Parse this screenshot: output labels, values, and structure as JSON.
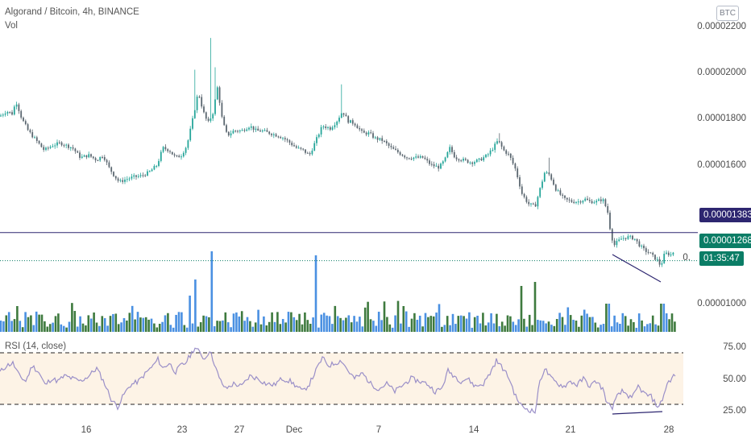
{
  "header": {
    "title": "Algorand / Bitcoin, 4h, BINANCE",
    "volume_label": "Vol",
    "rsi_label": "RSI (14, close)",
    "currency": "BTC"
  },
  "colors": {
    "up": "#26a69a",
    "down": "#5b6770",
    "vol_up": "#3e7a3e",
    "vol_down": "#4a90e2",
    "rsi_line": "#9a8fc8",
    "rsi_band": "#fdf3e6",
    "level_line": "#2d2670",
    "trend_line": "#2d2670",
    "current_price": "#0b7d66"
  },
  "chart_data": [
    {
      "type": "candlestick",
      "title": "Algorand / Bitcoin, 4h, BINANCE",
      "x_tick_labels": [
        "16",
        "23",
        "27",
        "Dec",
        "7",
        "14",
        "21",
        "28"
      ],
      "y_tick_labels": [
        "0.00002200",
        "0.00002000",
        "0.00001800",
        "0.00001600"
      ],
      "ylim": [
        1.28e-05,
        2.22e-05
      ],
      "level_line": 1.383e-05,
      "current_price": 1.268e-05,
      "countdown": "01:35:47",
      "level_label": "0.00001383",
      "current_label": "0.00001268",
      "partial_label": "0.",
      "anchors": [
        [
          0,
          1860
        ],
        [
          8,
          1880
        ],
        [
          15,
          1870
        ],
        [
          20,
          1920
        ],
        [
          27,
          1850
        ],
        [
          35,
          1800
        ],
        [
          45,
          1760
        ],
        [
          55,
          1720
        ],
        [
          65,
          1740
        ],
        [
          75,
          1750
        ],
        [
          82,
          1740
        ],
        [
          90,
          1730
        ],
        [
          100,
          1690
        ],
        [
          110,
          1700
        ],
        [
          120,
          1680
        ],
        [
          128,
          1700
        ],
        [
          135,
          1650
        ],
        [
          142,
          1615
        ],
        [
          148,
          1590
        ],
        [
          155,
          1600
        ],
        [
          165,
          1610
        ],
        [
          175,
          1615
        ],
        [
          185,
          1630
        ],
        [
          195,
          1660
        ],
        [
          202,
          1730
        ],
        [
          210,
          1720
        ],
        [
          218,
          1690
        ],
        [
          225,
          1700
        ],
        [
          232,
          1740
        ],
        [
          240,
          1860
        ],
        [
          246,
          1960
        ],
        [
          252,
          1880
        ],
        [
          258,
          1830
        ],
        [
          264,
          1870
        ],
        [
          270,
          1980
        ],
        [
          276,
          1840
        ],
        [
          282,
          1780
        ],
        [
          290,
          1800
        ],
        [
          300,
          1800
        ],
        [
          310,
          1820
        ],
        [
          318,
          1800
        ],
        [
          325,
          1800
        ],
        [
          335,
          1790
        ],
        [
          345,
          1780
        ],
        [
          352,
          1770
        ],
        [
          360,
          1750
        ],
        [
          368,
          1730
        ],
        [
          376,
          1720
        ],
        [
          384,
          1700
        ],
        [
          392,
          1760
        ],
        [
          400,
          1820
        ],
        [
          410,
          1810
        ],
        [
          418,
          1840
        ],
        [
          425,
          1880
        ],
        [
          432,
          1840
        ],
        [
          440,
          1830
        ],
        [
          450,
          1790
        ],
        [
          458,
          1790
        ],
        [
          465,
          1770
        ],
        [
          475,
          1760
        ],
        [
          485,
          1730
        ],
        [
          495,
          1710
        ],
        [
          505,
          1690
        ],
        [
          515,
          1690
        ],
        [
          525,
          1690
        ],
        [
          535,
          1660
        ],
        [
          545,
          1650
        ],
        [
          552,
          1680
        ],
        [
          558,
          1730
        ],
        [
          565,
          1690
        ],
        [
          575,
          1680
        ],
        [
          585,
          1670
        ],
        [
          595,
          1680
        ],
        [
          605,
          1700
        ],
        [
          612,
          1730
        ],
        [
          618,
          1760
        ],
        [
          625,
          1720
        ],
        [
          632,
          1700
        ],
        [
          640,
          1640
        ],
        [
          648,
          1540
        ],
        [
          656,
          1500
        ],
        [
          664,
          1490
        ],
        [
          670,
          1560
        ],
        [
          676,
          1630
        ],
        [
          682,
          1620
        ],
        [
          690,
          1560
        ],
        [
          700,
          1520
        ],
        [
          710,
          1510
        ],
        [
          718,
          1510
        ],
        [
          726,
          1520
        ],
        [
          732,
          1510
        ],
        [
          740,
          1510
        ],
        [
          748,
          1520
        ],
        [
          754,
          1470
        ],
        [
          758,
          1380
        ],
        [
          762,
          1330
        ],
        [
          766,
          1345
        ],
        [
          772,
          1360
        ],
        [
          780,
          1365
        ],
        [
          787,
          1360
        ],
        [
          794,
          1330
        ],
        [
          800,
          1310
        ],
        [
          806,
          1300
        ],
        [
          812,
          1280
        ],
        [
          816,
          1270
        ],
        [
          820,
          1245
        ],
        [
          824,
          1290
        ],
        [
          828,
          1300
        ],
        [
          832,
          1290
        ],
        [
          836,
          1305
        ]
      ],
      "spikes": [
        [
          262,
          2180
        ],
        [
          242,
          2050
        ],
        [
          268,
          2060
        ],
        [
          424,
          1990
        ],
        [
          620,
          1790
        ],
        [
          682,
          1690
        ]
      ]
    },
    {
      "type": "bar",
      "title": "Vol",
      "spikes": [
        [
          262,
          1.0
        ],
        [
          393,
          0.95
        ],
        [
          242,
          0.65
        ],
        [
          664,
          0.62
        ],
        [
          648,
          0.57
        ],
        [
          236,
          0.45
        ],
        [
          754,
          0.35
        ],
        [
          822,
          0.35
        ],
        [
          20,
          0.32
        ],
        [
          500,
          0.32
        ]
      ]
    },
    {
      "type": "line",
      "title": "RSI (14, close)",
      "y_tick_labels": [
        "75.00",
        "50.00",
        "25.00"
      ],
      "ylim": [
        22,
        78
      ],
      "bands": [
        30,
        70
      ],
      "anchors": [
        [
          0,
          55
        ],
        [
          8,
          60
        ],
        [
          16,
          62
        ],
        [
          24,
          52
        ],
        [
          32,
          48
        ],
        [
          40,
          60
        ],
        [
          48,
          55
        ],
        [
          56,
          45
        ],
        [
          64,
          50
        ],
        [
          72,
          48
        ],
        [
          80,
          52
        ],
        [
          90,
          50
        ],
        [
          100,
          48
        ],
        [
          110,
          52
        ],
        [
          120,
          58
        ],
        [
          130,
          46
        ],
        [
          138,
          34
        ],
        [
          146,
          28
        ],
        [
          154,
          38
        ],
        [
          162,
          45
        ],
        [
          172,
          48
        ],
        [
          182,
          55
        ],
        [
          190,
          60
        ],
        [
          196,
          65
        ],
        [
          202,
          58
        ],
        [
          210,
          62
        ],
        [
          218,
          55
        ],
        [
          224,
          60
        ],
        [
          230,
          62
        ],
        [
          236,
          68
        ],
        [
          242,
          74
        ],
        [
          248,
          70
        ],
        [
          254,
          65
        ],
        [
          260,
          72
        ],
        [
          266,
          62
        ],
        [
          272,
          50
        ],
        [
          280,
          42
        ],
        [
          290,
          46
        ],
        [
          300,
          44
        ],
        [
          310,
          52
        ],
        [
          320,
          50
        ],
        [
          330,
          46
        ],
        [
          340,
          45
        ],
        [
          350,
          50
        ],
        [
          360,
          48
        ],
        [
          368,
          44
        ],
        [
          376,
          40
        ],
        [
          384,
          46
        ],
        [
          392,
          56
        ],
        [
          400,
          66
        ],
        [
          408,
          60
        ],
        [
          416,
          62
        ],
        [
          424,
          64
        ],
        [
          432,
          56
        ],
        [
          440,
          50
        ],
        [
          450,
          54
        ],
        [
          460,
          46
        ],
        [
          470,
          42
        ],
        [
          480,
          46
        ],
        [
          490,
          40
        ],
        [
          500,
          45
        ],
        [
          510,
          50
        ],
        [
          520,
          48
        ],
        [
          530,
          46
        ],
        [
          540,
          40
        ],
        [
          548,
          42
        ],
        [
          556,
          56
        ],
        [
          564,
          52
        ],
        [
          572,
          48
        ],
        [
          580,
          50
        ],
        [
          590,
          44
        ],
        [
          600,
          46
        ],
        [
          608,
          54
        ],
        [
          616,
          64
        ],
        [
          624,
          58
        ],
        [
          632,
          50
        ],
        [
          640,
          36
        ],
        [
          648,
          28
        ],
        [
          656,
          26
        ],
        [
          664,
          24
        ],
        [
          670,
          48
        ],
        [
          676,
          58
        ],
        [
          684,
          50
        ],
        [
          692,
          46
        ],
        [
          700,
          44
        ],
        [
          708,
          48
        ],
        [
          716,
          45
        ],
        [
          724,
          50
        ],
        [
          732,
          44
        ],
        [
          740,
          48
        ],
        [
          748,
          42
        ],
        [
          754,
          30
        ],
        [
          760,
          28
        ],
        [
          766,
          36
        ],
        [
          772,
          40
        ],
        [
          778,
          38
        ],
        [
          784,
          34
        ],
        [
          792,
          44
        ],
        [
          800,
          38
        ],
        [
          808,
          36
        ],
        [
          814,
          30
        ],
        [
          818,
          28
        ],
        [
          822,
          34
        ],
        [
          828,
          46
        ],
        [
          836,
          52
        ]
      ]
    }
  ]
}
